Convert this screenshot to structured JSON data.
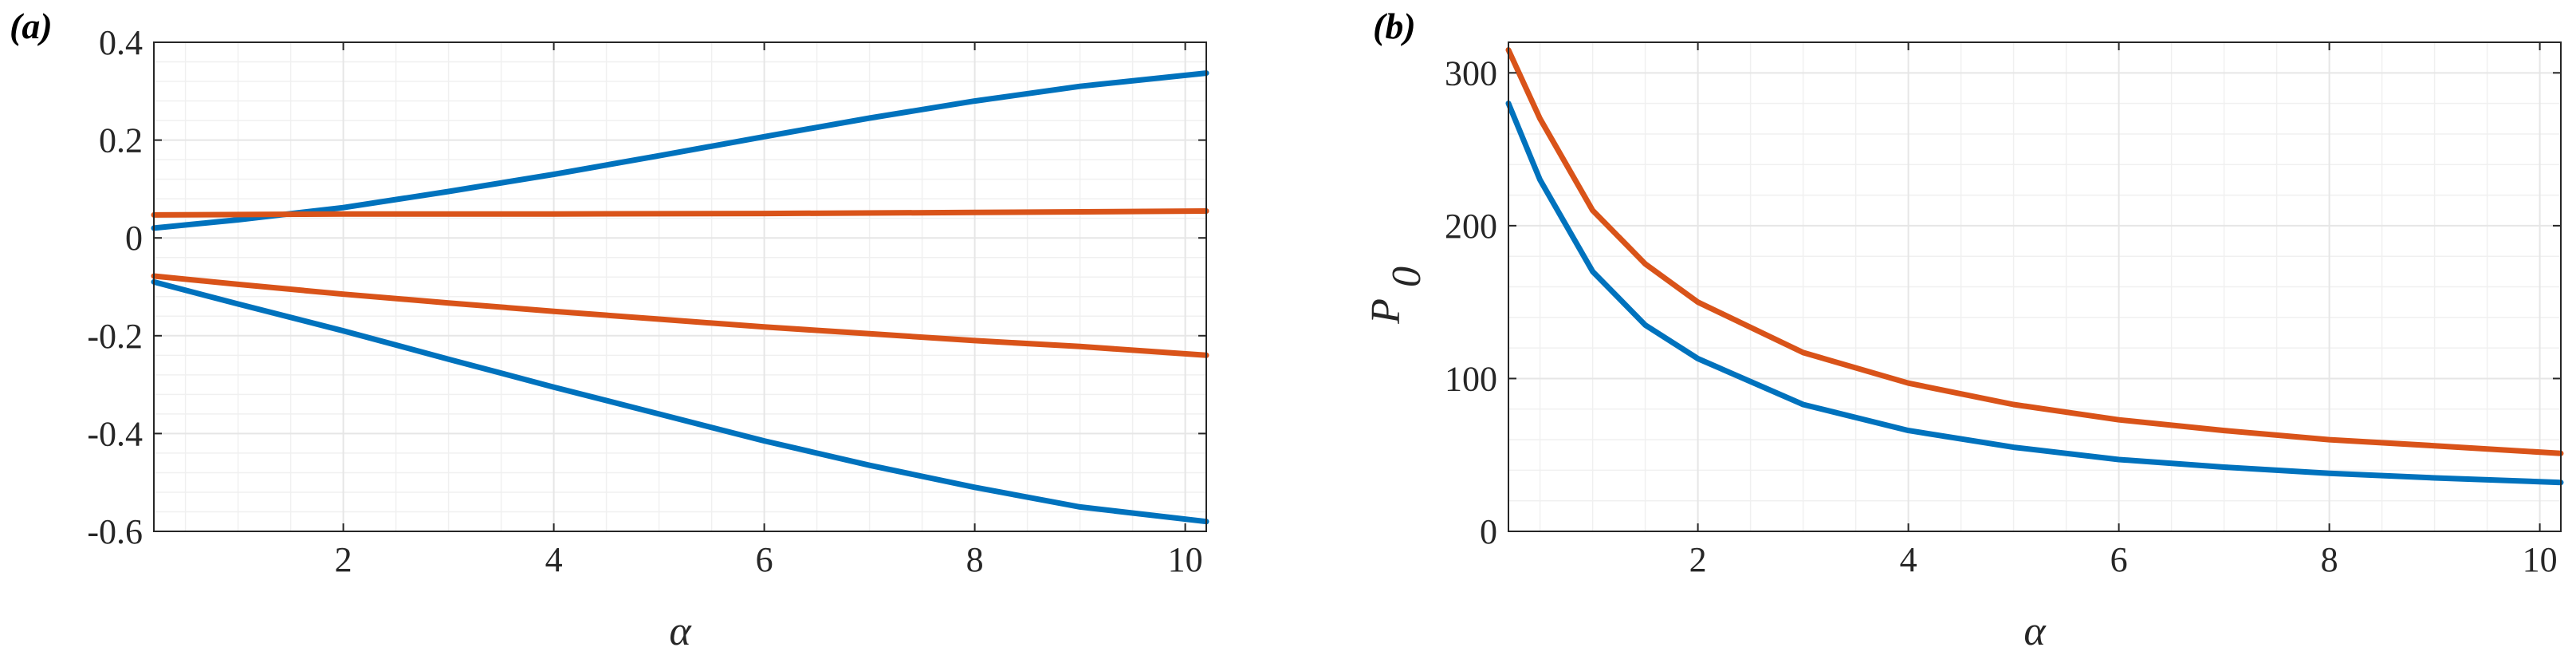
{
  "colors": {
    "blue": "#0072BD",
    "orange": "#D95319"
  },
  "chart_data": [
    {
      "type": "line",
      "panel_label": "(a)",
      "title": "",
      "xlabel": "α",
      "ylabel": "",
      "xlim": [
        0.2,
        10.2
      ],
      "ylim": [
        -0.6,
        0.4
      ],
      "xticks": [
        2,
        4,
        6,
        8,
        10
      ],
      "xtick_labels": [
        "2",
        "4",
        "6",
        "8",
        "10"
      ],
      "yticks": [
        -0.6,
        -0.4,
        -0.2,
        0,
        0.2,
        0.4
      ],
      "ytick_labels": [
        "-0.6",
        "-0.4",
        "-0.2",
        "0",
        "0.2",
        "0.4"
      ],
      "grid": true,
      "series": [
        {
          "name": "blue-upper",
          "color": "#0072BD",
          "x": [
            0.2,
            1,
            2,
            3,
            4,
            5,
            6,
            7,
            8,
            9,
            10.2
          ],
          "y": [
            0.02,
            0.037,
            0.062,
            0.095,
            0.13,
            0.168,
            0.207,
            0.245,
            0.28,
            0.31,
            0.337
          ]
        },
        {
          "name": "orange-upper",
          "color": "#D95319",
          "x": [
            0.2,
            2,
            4,
            6,
            8,
            10.2
          ],
          "y": [
            0.047,
            0.049,
            0.049,
            0.05,
            0.052,
            0.055
          ]
        },
        {
          "name": "orange-lower",
          "color": "#D95319",
          "x": [
            0.2,
            1,
            2,
            3,
            4,
            5,
            6,
            7,
            8,
            9,
            10.2
          ],
          "y": [
            -0.078,
            -0.095,
            -0.115,
            -0.133,
            -0.15,
            -0.166,
            -0.182,
            -0.196,
            -0.21,
            -0.222,
            -0.24
          ]
        },
        {
          "name": "blue-lower",
          "color": "#0072BD",
          "x": [
            0.2,
            1,
            2,
            3,
            4,
            5,
            6,
            7,
            8,
            9,
            10.2
          ],
          "y": [
            -0.09,
            -0.135,
            -0.19,
            -0.248,
            -0.305,
            -0.36,
            -0.415,
            -0.465,
            -0.51,
            -0.55,
            -0.58
          ]
        }
      ]
    },
    {
      "type": "line",
      "panel_label": "(b)",
      "title": "",
      "xlabel": "α",
      "ylabel": "P",
      "ylabel_sub": "0",
      "xlim": [
        0.2,
        10.2
      ],
      "ylim": [
        0,
        320
      ],
      "xticks": [
        2,
        4,
        6,
        8,
        10
      ],
      "xtick_labels": [
        "2",
        "4",
        "6",
        "8",
        "10"
      ],
      "yticks": [
        0,
        100,
        200,
        300
      ],
      "ytick_labels": [
        "0",
        "100",
        "200",
        "300"
      ],
      "grid": true,
      "series": [
        {
          "name": "orange",
          "color": "#D95319",
          "x": [
            0.2,
            0.5,
            1,
            1.5,
            2,
            3,
            4,
            5,
            6,
            7,
            8,
            9,
            10.2
          ],
          "y": [
            315,
            270,
            210,
            175,
            150,
            117,
            97,
            83,
            73,
            66,
            60,
            56,
            51
          ]
        },
        {
          "name": "blue",
          "color": "#0072BD",
          "x": [
            0.2,
            0.5,
            1,
            1.5,
            2,
            3,
            4,
            5,
            6,
            7,
            8,
            9,
            10.2
          ],
          "y": [
            280,
            230,
            170,
            135,
            113,
            83,
            66,
            55,
            47,
            42,
            38,
            35,
            32
          ]
        }
      ]
    }
  ]
}
